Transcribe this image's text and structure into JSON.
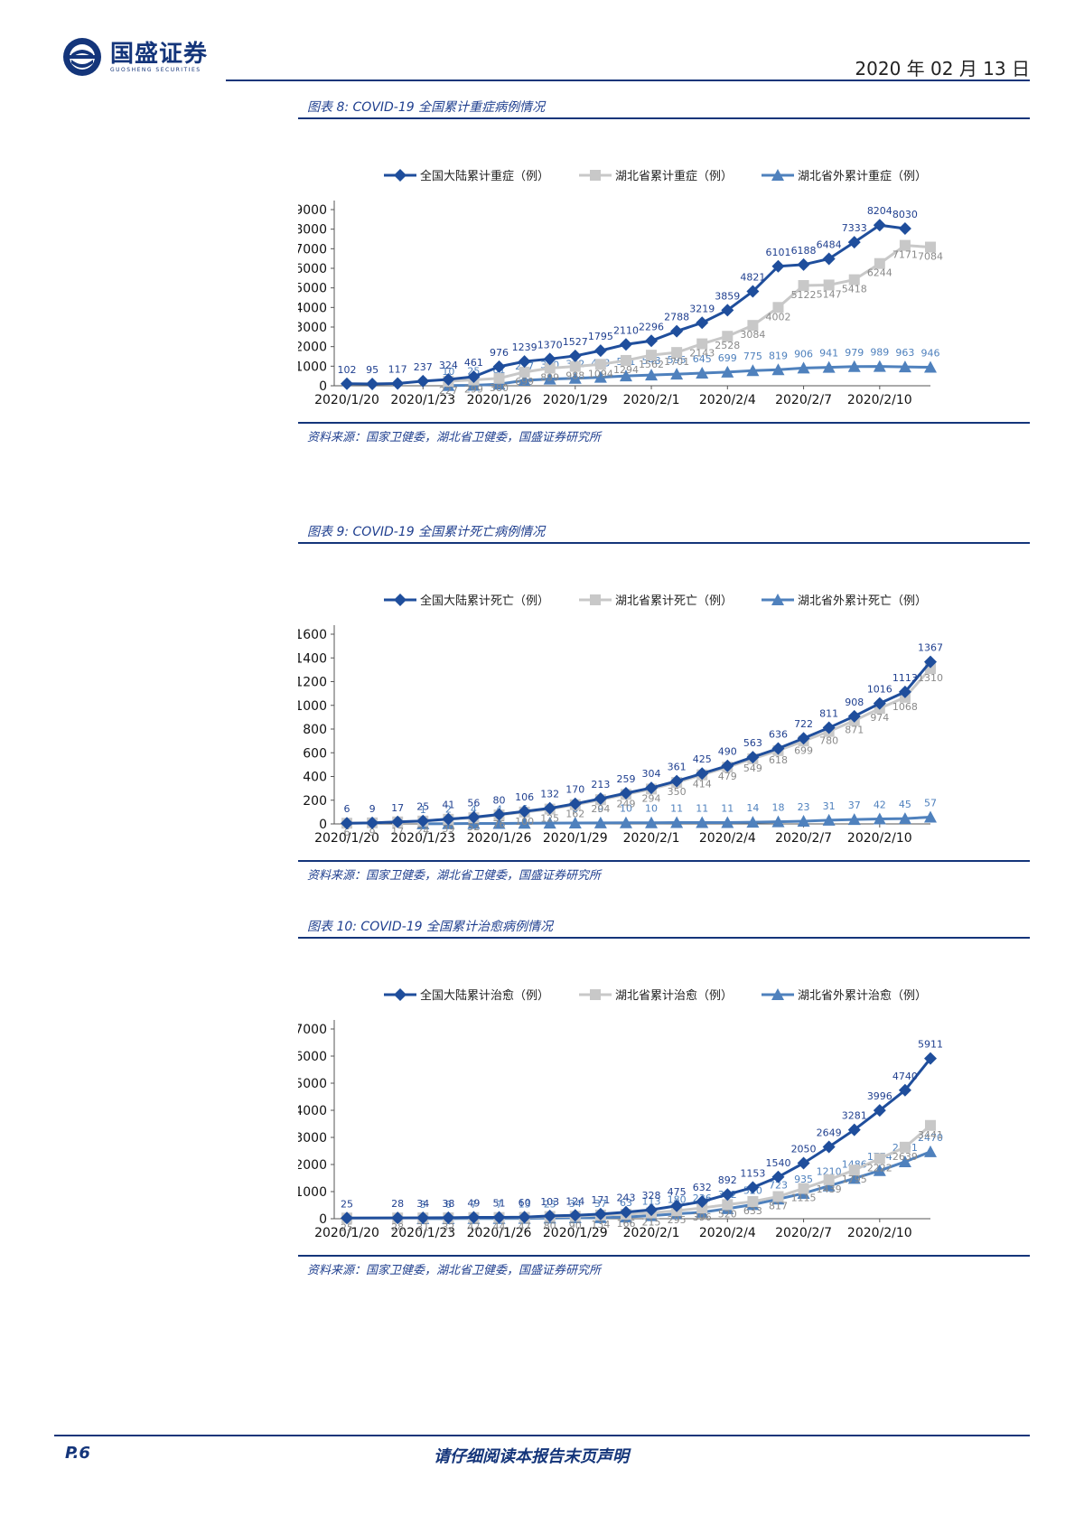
{
  "header": {
    "brand_cn": "国盛证券",
    "brand_en": "GUOSHENG SECURITIES",
    "date": "2020 年 02 月 13 日"
  },
  "footer": {
    "page": "P.6",
    "note": "请仔细阅读本报告末页声明"
  },
  "colors": {
    "dark": "#1f4e9c",
    "gray": "#c8c8c8",
    "light": "#4f81bd",
    "rule": "#14357a"
  },
  "chart_data": [
    {
      "type": "line",
      "title": "图表 8:  COVID-19 全国累计重症病例情况",
      "source": "资料来源：国家卫健委，湖北省卫健委，国盛证券研究所",
      "xlabels": [
        "2020/1/20",
        "2020/1/23",
        "2020/1/26",
        "2020/1/29",
        "2020/2/1",
        "2020/2/4",
        "2020/2/7",
        "2020/2/10"
      ],
      "ylim": [
        0,
        9000
      ],
      "yticks": [
        0,
        1000,
        2000,
        3000,
        4000,
        5000,
        6000,
        7000,
        8000,
        9000
      ],
      "series": [
        {
          "name": "全国大陆累计重症（例）",
          "style": "dark",
          "start": 0,
          "values": [
            102,
            95,
            117,
            237,
            324,
            461,
            976,
            1239,
            1370,
            1527,
            1795,
            2110,
            2296,
            2788,
            3219,
            3859,
            4821,
            6101,
            6188,
            6484,
            7333,
            8204,
            8030
          ]
        },
        {
          "name": "湖北省累计重症（例）",
          "style": "gray",
          "start": 4,
          "values": [
            227,
            299,
            380,
            699,
            899,
            988,
            1094,
            1294,
            1562,
            1701,
            2143,
            2528,
            3084,
            4002,
            5122,
            5147,
            5418,
            6244,
            7171,
            7084
          ]
        },
        {
          "name": "湖北省外累计重症（例）",
          "style": "light",
          "start": 4,
          "values": [
            10,
            25,
            81,
            277,
            340,
            382,
            433,
            501,
            548,
            595,
            645,
            699,
            775,
            819,
            906,
            941,
            979,
            989,
            963,
            946
          ]
        }
      ]
    },
    {
      "type": "line",
      "title": "图表 9:  COVID-19 全国累计死亡病例情况",
      "source": "资料来源：国家卫健委，湖北省卫健委，国盛证券研究所",
      "xlabels": [
        "2020/1/20",
        "2020/1/23",
        "2020/1/26",
        "2020/1/29",
        "2020/2/1",
        "2020/2/4",
        "2020/2/7",
        "2020/2/10"
      ],
      "ylim": [
        0,
        1600
      ],
      "yticks": [
        0,
        200,
        400,
        600,
        800,
        1000,
        1200,
        1400,
        1600
      ],
      "series": [
        {
          "name": "全国大陆累计死亡（例）",
          "style": "dark",
          "start": 0,
          "values": [
            6,
            9,
            17,
            25,
            41,
            56,
            80,
            106,
            132,
            170,
            213,
            259,
            304,
            361,
            425,
            490,
            563,
            636,
            722,
            811,
            908,
            1016,
            1113,
            1367
          ]
        },
        {
          "name": "湖北省累计死亡（例）",
          "style": "gray",
          "start": 0,
          "values": [
            6,
            9,
            17,
            24,
            39,
            52,
            76,
            100,
            125,
            162,
            204,
            249,
            294,
            350,
            414,
            479,
            549,
            618,
            699,
            780,
            871,
            974,
            1068,
            1310
          ]
        },
        {
          "name": "湖北省外累计死亡（例）",
          "style": "light",
          "start": 3,
          "values": [
            1,
            2,
            4,
            4,
            6,
            7,
            8,
            9,
            10,
            10,
            11,
            11,
            11,
            14,
            18,
            23,
            31,
            37,
            42,
            45,
            57
          ]
        }
      ]
    },
    {
      "type": "line",
      "title": "图表 10:  COVID-19 全国累计治愈病例情况",
      "source": "资料来源：国家卫健委，湖北省卫健委，国盛证券研究所",
      "xlabels": [
        "2020/1/20",
        "2020/1/23",
        "2020/1/26",
        "2020/1/29",
        "2020/2/1",
        "2020/2/4",
        "2020/2/7",
        "2020/2/10"
      ],
      "ylim": [
        0,
        7000
      ],
      "yticks": [
        0,
        1000,
        2000,
        3000,
        4000,
        5000,
        6000,
        7000
      ],
      "series": [
        {
          "name": "全国大陆累计治愈（例）",
          "style": "dark",
          "start": 0,
          "values": [
            25,
            null,
            28,
            34,
            38,
            49,
            51,
            60,
            103,
            124,
            171,
            243,
            328,
            475,
            632,
            892,
            1153,
            1540,
            2050,
            2649,
            3281,
            3996,
            4740,
            5911
          ]
        },
        {
          "name": "湖北省累计治愈（例）",
          "style": "gray",
          "start": 0,
          "values": [
            25,
            null,
            28,
            31,
            32,
            42,
            44,
            47,
            80,
            90,
            134,
            166,
            215,
            295,
            396,
            520,
            633,
            817,
            1115,
            1439,
            1795,
            2222,
            2639,
            3441
          ]
        },
        {
          "name": "湖北省外累计治愈（例）",
          "style": "light",
          "start": 3,
          "values": [
            3,
            6,
            7,
            7,
            13,
            23,
            34,
            37,
            63,
            113,
            180,
            236,
            372,
            520,
            723,
            935,
            1210,
            1486,
            1774,
            2101,
            2470
          ]
        }
      ]
    }
  ]
}
